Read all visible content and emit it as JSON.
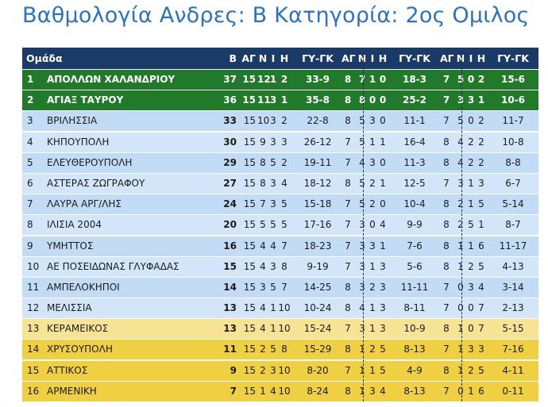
{
  "title": "Βαθμολογία Ανδρες: Β Κατηγορία: 2ος Ομιλος",
  "header": {
    "team": "Ομάδα",
    "pts": "Β",
    "g": "ΑΓ",
    "w": "Ν",
    "d": "Ι",
    "l": "Η",
    "gd": "ΓΥ-ΓΚ",
    "hg": "ΑΓ",
    "hw": "Ν",
    "hd": "Ι",
    "hl": "Η",
    "hgd": "ΓΥ-ΓΚ",
    "ag": "ΑΓ",
    "aw": "Ν",
    "ad": "Ι",
    "al": "Η",
    "agd": "ΓΥ-ΓΚ"
  },
  "rows": [
    {
      "pos": "1",
      "team": "ΑΠΟΛΛΩΝ ΧΑΛΑΝΔΡΙΟΥ",
      "pts": "37",
      "g": "15",
      "w": "12",
      "d": "1",
      "l": "2",
      "gd": "33-9",
      "hg": "8",
      "hw": "7",
      "hd": "1",
      "hl": "0",
      "hgd": "18-3",
      "ag": "7",
      "aw": "5",
      "ad": "0",
      "al": "2",
      "agd": "15-6"
    },
    {
      "pos": "2",
      "team": "ΑΓΙΑΞ ΤΑΥΡΟΥ",
      "pts": "36",
      "g": "15",
      "w": "11",
      "d": "3",
      "l": "1",
      "gd": "35-8",
      "hg": "8",
      "hw": "8",
      "hd": "0",
      "hl": "0",
      "hgd": "25-2",
      "ag": "7",
      "aw": "3",
      "ad": "3",
      "al": "1",
      "agd": "10-6"
    },
    {
      "pos": "3",
      "team": "ΒΡΙΛΗΣΣΙΑ",
      "pts": "33",
      "g": "15",
      "w": "10",
      "d": "3",
      "l": "2",
      "gd": "22-8",
      "hg": "8",
      "hw": "5",
      "hd": "3",
      "hl": "0",
      "hgd": "11-1",
      "ag": "7",
      "aw": "5",
      "ad": "0",
      "al": "2",
      "agd": "11-7"
    },
    {
      "pos": "4",
      "team": "ΚΗΠΟΥΠΟΛΗ",
      "pts": "30",
      "g": "15",
      "w": "9",
      "d": "3",
      "l": "3",
      "gd": "26-12",
      "hg": "7",
      "hw": "5",
      "hd": "1",
      "hl": "1",
      "hgd": "16-4",
      "ag": "8",
      "aw": "4",
      "ad": "2",
      "al": "2",
      "agd": "10-8"
    },
    {
      "pos": "5",
      "team": "ΕΛΕΥΘΕΡΟΥΠΟΛΗ",
      "pts": "29",
      "g": "15",
      "w": "8",
      "d": "5",
      "l": "2",
      "gd": "19-11",
      "hg": "7",
      "hw": "4",
      "hd": "3",
      "hl": "0",
      "hgd": "11-3",
      "ag": "8",
      "aw": "4",
      "ad": "2",
      "al": "2",
      "agd": "8-8"
    },
    {
      "pos": "6",
      "team": "ΑΣΤΕΡΑΣ ΖΩΓΡΑΦΟΥ",
      "pts": "27",
      "g": "15",
      "w": "8",
      "d": "3",
      "l": "4",
      "gd": "18-12",
      "hg": "8",
      "hw": "5",
      "hd": "2",
      "hl": "1",
      "hgd": "12-5",
      "ag": "7",
      "aw": "3",
      "ad": "1",
      "al": "3",
      "agd": "6-7"
    },
    {
      "pos": "7",
      "team": "ΛΑΥΡΑ ΑΡΓ/ΛΗΣ",
      "pts": "24",
      "g": "15",
      "w": "7",
      "d": "3",
      "l": "5",
      "gd": "15-18",
      "hg": "7",
      "hw": "5",
      "hd": "2",
      "hl": "0",
      "hgd": "10-4",
      "ag": "8",
      "aw": "2",
      "ad": "1",
      "al": "5",
      "agd": "5-14"
    },
    {
      "pos": "8",
      "team": "ΙΛΙΣΙΑ 2004",
      "pts": "20",
      "g": "15",
      "w": "5",
      "d": "5",
      "l": "5",
      "gd": "17-16",
      "hg": "7",
      "hw": "3",
      "hd": "0",
      "hl": "4",
      "hgd": "9-9",
      "ag": "8",
      "aw": "2",
      "ad": "5",
      "al": "1",
      "agd": "8-7"
    },
    {
      "pos": "9",
      "team": "ΥΜΗΤΤΟΣ",
      "pts": "16",
      "g": "15",
      "w": "4",
      "d": "4",
      "l": "7",
      "gd": "18-23",
      "hg": "7",
      "hw": "3",
      "hd": "3",
      "hl": "1",
      "hgd": "7-6",
      "ag": "8",
      "aw": "1",
      "ad": "1",
      "al": "6",
      "agd": "11-17"
    },
    {
      "pos": "10",
      "team": "ΑΕ ΠΟΣΕΙΔΩΝΑΣ ΓΛΥΦΑΔΑΣ",
      "pts": "15",
      "g": "15",
      "w": "4",
      "d": "3",
      "l": "8",
      "gd": "9-19",
      "hg": "7",
      "hw": "3",
      "hd": "1",
      "hl": "3",
      "hgd": "5-6",
      "ag": "8",
      "aw": "1",
      "ad": "2",
      "al": "5",
      "agd": "4-13"
    },
    {
      "pos": "11",
      "team": "ΑΜΠΕΛΟΚΗΠΟΙ",
      "pts": "14",
      "g": "15",
      "w": "3",
      "d": "5",
      "l": "7",
      "gd": "14-25",
      "hg": "8",
      "hw": "3",
      "hd": "2",
      "hl": "3",
      "hgd": "11-11",
      "ag": "7",
      "aw": "0",
      "ad": "3",
      "al": "4",
      "agd": "3-14"
    },
    {
      "pos": "12",
      "team": "ΜΕΛΙΣΣΙΑ",
      "pts": "13",
      "g": "15",
      "w": "4",
      "d": "1",
      "l": "10",
      "gd": "10-24",
      "hg": "8",
      "hw": "4",
      "hd": "1",
      "hl": "3",
      "hgd": "8-11",
      "ag": "7",
      "aw": "0",
      "ad": "0",
      "al": "7",
      "agd": "2-13"
    },
    {
      "pos": "13",
      "team": "ΚΕΡΑΜΕΙΚΟΣ",
      "pts": "13",
      "g": "15",
      "w": "4",
      "d": "1",
      "l": "10",
      "gd": "15-24",
      "hg": "7",
      "hw": "3",
      "hd": "1",
      "hl": "3",
      "hgd": "10-9",
      "ag": "8",
      "aw": "1",
      "ad": "0",
      "al": "7",
      "agd": "5-15"
    },
    {
      "pos": "14",
      "team": "ΧΡΥΣΟΥΠΟΛΗ",
      "pts": "11",
      "g": "15",
      "w": "2",
      "d": "5",
      "l": "8",
      "gd": "15-29",
      "hg": "8",
      "hw": "1",
      "hd": "2",
      "hl": "5",
      "hgd": "8-13",
      "ag": "7",
      "aw": "1",
      "ad": "3",
      "al": "3",
      "agd": "7-16"
    },
    {
      "pos": "15",
      "team": "ΑΤΤΙΚΟΣ",
      "pts": "9",
      "g": "15",
      "w": "2",
      "d": "3",
      "l": "10",
      "gd": "8-20",
      "hg": "7",
      "hw": "1",
      "hd": "1",
      "hl": "5",
      "hgd": "4-9",
      "ag": "8",
      "aw": "1",
      "ad": "2",
      "al": "5",
      "agd": "4-11"
    },
    {
      "pos": "16",
      "team": "ΑΡΜΕΝΙΚΗ",
      "pts": "7",
      "g": "15",
      "w": "1",
      "d": "4",
      "l": "10",
      "gd": "8-24",
      "hg": "8",
      "hw": "1",
      "hd": "3",
      "hl": "4",
      "hgd": "8-13",
      "ag": "7",
      "aw": "0",
      "ad": "1",
      "al": "6",
      "agd": "0-11"
    }
  ]
}
